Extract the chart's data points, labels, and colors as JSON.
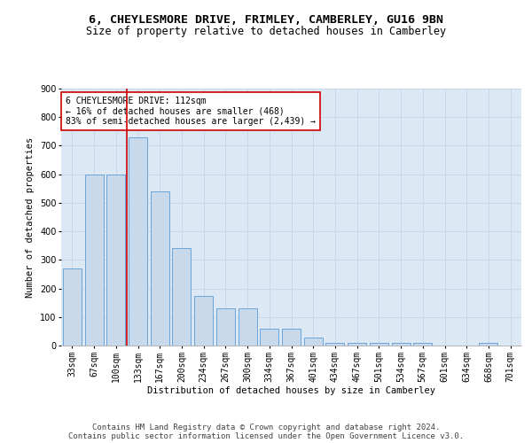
{
  "title_line1": "6, CHEYLESMORE DRIVE, FRIMLEY, CAMBERLEY, GU16 9BN",
  "title_line2": "Size of property relative to detached houses in Camberley",
  "xlabel": "Distribution of detached houses by size in Camberley",
  "ylabel": "Number of detached properties",
  "categories": [
    "33sqm",
    "67sqm",
    "100sqm",
    "133sqm",
    "167sqm",
    "200sqm",
    "234sqm",
    "267sqm",
    "300sqm",
    "334sqm",
    "367sqm",
    "401sqm",
    "434sqm",
    "467sqm",
    "501sqm",
    "534sqm",
    "567sqm",
    "601sqm",
    "634sqm",
    "668sqm",
    "701sqm"
  ],
  "values": [
    270,
    600,
    600,
    730,
    540,
    340,
    175,
    130,
    130,
    60,
    60,
    27,
    10,
    10,
    10,
    10,
    10,
    0,
    0,
    10,
    0
  ],
  "bar_color": "#c9d9ec",
  "bar_edge_color": "#5b9bd5",
  "grid_color": "#c8d8ea",
  "background_color": "#dce9f5",
  "vline_color": "#cc0000",
  "annotation_text": "6 CHEYLESMORE DRIVE: 112sqm\n← 16% of detached houses are smaller (468)\n83% of semi-detached houses are larger (2,439) →",
  "annotation_box_color": "#ffffff",
  "annotation_box_edge": "#cc0000",
  "footer_text": "Contains HM Land Registry data © Crown copyright and database right 2024.\nContains public sector information licensed under the Open Government Licence v3.0.",
  "ylim": [
    0,
    900
  ],
  "yticks": [
    0,
    100,
    200,
    300,
    400,
    500,
    600,
    700,
    800,
    900
  ],
  "title_fontsize": 9.5,
  "subtitle_fontsize": 8.5,
  "axis_label_fontsize": 7.5,
  "tick_fontsize": 7,
  "annotation_fontsize": 7,
  "footer_fontsize": 6.5
}
